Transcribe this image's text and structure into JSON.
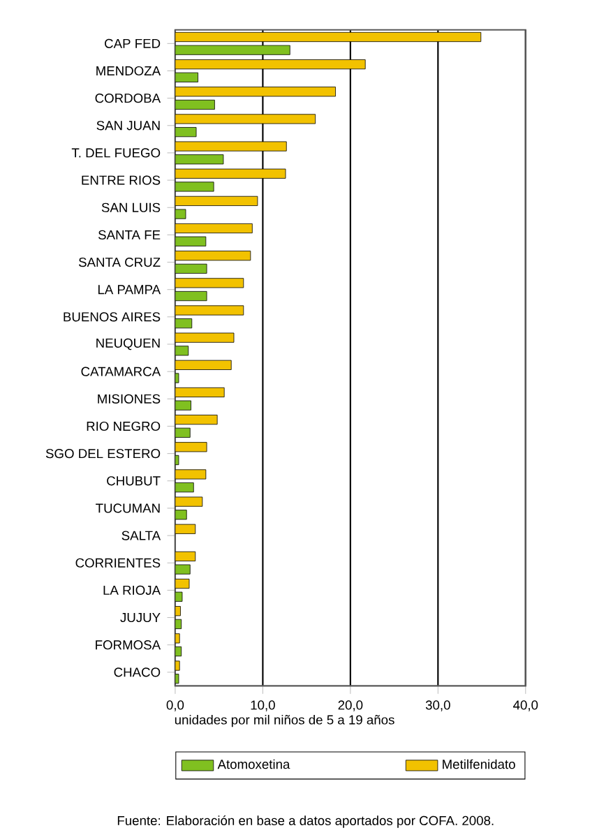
{
  "chart_data": {
    "type": "bar",
    "orientation": "horizontal",
    "categories": [
      "CAP FED",
      "MENDOZA",
      "CORDOBA",
      "SAN JUAN",
      "T. DEL FUEGO",
      "ENTRE RIOS",
      "SAN LUIS",
      "SANTA FE",
      "SANTA CRUZ",
      "LA PAMPA",
      "BUENOS AIRES",
      "NEUQUEN",
      "CATAMARCA",
      "MISIONES",
      "RIO NEGRO",
      "SGO DEL ESTERO",
      "CHUBUT",
      "TUCUMAN",
      "SALTA",
      "CORRIENTES",
      "LA RIOJA",
      "JUJUY",
      "FORMOSA",
      "CHACO"
    ],
    "series": [
      {
        "name": "Metilfenidato",
        "color": "#f2c200",
        "values": [
          34.9,
          21.7,
          18.3,
          16.0,
          12.7,
          12.6,
          9.4,
          8.8,
          8.6,
          7.8,
          7.8,
          6.7,
          6.4,
          5.6,
          4.8,
          3.6,
          3.5,
          3.1,
          2.3,
          2.3,
          1.6,
          0.6,
          0.5,
          0.5
        ]
      },
      {
        "name": "Atomoxetina",
        "color": "#80c020",
        "values": [
          13.1,
          2.6,
          4.5,
          2.4,
          5.5,
          4.4,
          1.2,
          3.5,
          3.6,
          3.6,
          1.9,
          1.5,
          0.4,
          1.8,
          1.7,
          0.4,
          2.1,
          1.3,
          null,
          1.7,
          0.8,
          0.7,
          0.7,
          0.4
        ]
      }
    ],
    "xlabel": "unidades por mil niños de 5 a 19 años",
    "xlim": [
      0,
      40
    ],
    "xticks": [
      {
        "value": 0,
        "label": "0,0"
      },
      {
        "value": 10,
        "label": "10,0"
      },
      {
        "value": 20,
        "label": "20,0"
      },
      {
        "value": 30,
        "label": "30,0"
      },
      {
        "value": 40,
        "label": "40,0"
      }
    ],
    "grid": "x",
    "legend": "bottom",
    "annotations": [
      "Fuente: Elaboración en base a datos aportados por COFA. 2008."
    ]
  }
}
